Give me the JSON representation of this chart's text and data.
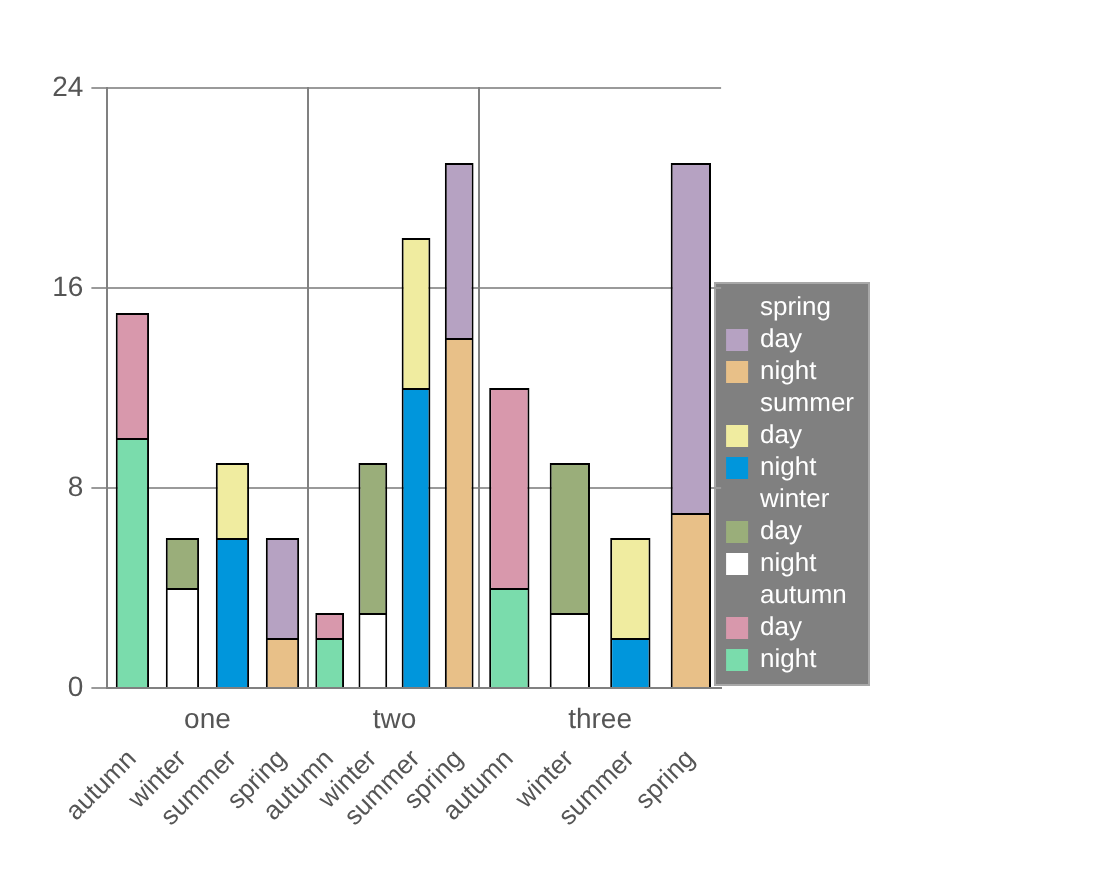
{
  "chart_data": [
    {
      "type": "bar",
      "stacked": true,
      "xlabel": "one",
      "categories": [
        "autumn",
        "winter",
        "summer",
        "spring"
      ],
      "series": [
        {
          "colors": [
            "#7adcac",
            "#ffffff",
            "#0096dc",
            "#e8c088"
          ],
          "values": [
            10,
            4,
            6,
            2
          ]
        },
        {
          "colors": [
            "#d898ac",
            "#9aae7a",
            "#f0eca0",
            "#b6a2c2"
          ],
          "values": [
            5,
            2,
            3,
            4
          ]
        }
      ],
      "ylim": [
        0,
        24
      ],
      "yticks": [
        0,
        8,
        16,
        24
      ],
      "grid": "y"
    },
    {
      "type": "bar",
      "stacked": true,
      "xlabel": "two",
      "categories": [
        "autumn",
        "winter",
        "summer",
        "spring"
      ],
      "series": [
        {
          "colors": [
            "#7adcac",
            "#ffffff",
            "#0096dc",
            "#e8c088"
          ],
          "values": [
            2,
            3,
            12,
            14
          ]
        },
        {
          "colors": [
            "#d898ac",
            "#9aae7a",
            "#f0eca0",
            "#b6a2c2"
          ],
          "values": [
            1,
            6,
            6,
            7
          ]
        }
      ],
      "ylim": [
        0,
        24
      ],
      "yticks": [
        0,
        8,
        16,
        24
      ],
      "grid": "y",
      "tick_labels": "x"
    },
    {
      "type": "bar",
      "stacked": true,
      "xlabel": "three",
      "categories": [
        "autumn",
        "winter",
        "summer",
        "spring"
      ],
      "series": [
        {
          "name": "night",
          "colors": [
            "#7adcac",
            "#ffffff",
            "#0096dc",
            "#e8c088"
          ],
          "values": [
            4,
            3,
            2,
            7
          ]
        },
        {
          "name": "day",
          "colors": [
            "#d898ac",
            "#9aae7a",
            "#f0eca0",
            "#b6a2c2"
          ],
          "values": [
            8,
            6,
            4,
            14
          ]
        }
      ],
      "ylim": [
        0,
        24
      ],
      "yticks": [
        0,
        8,
        16,
        24
      ],
      "grid": "y",
      "tick_labels": "x",
      "legend": "right"
    }
  ]
}
